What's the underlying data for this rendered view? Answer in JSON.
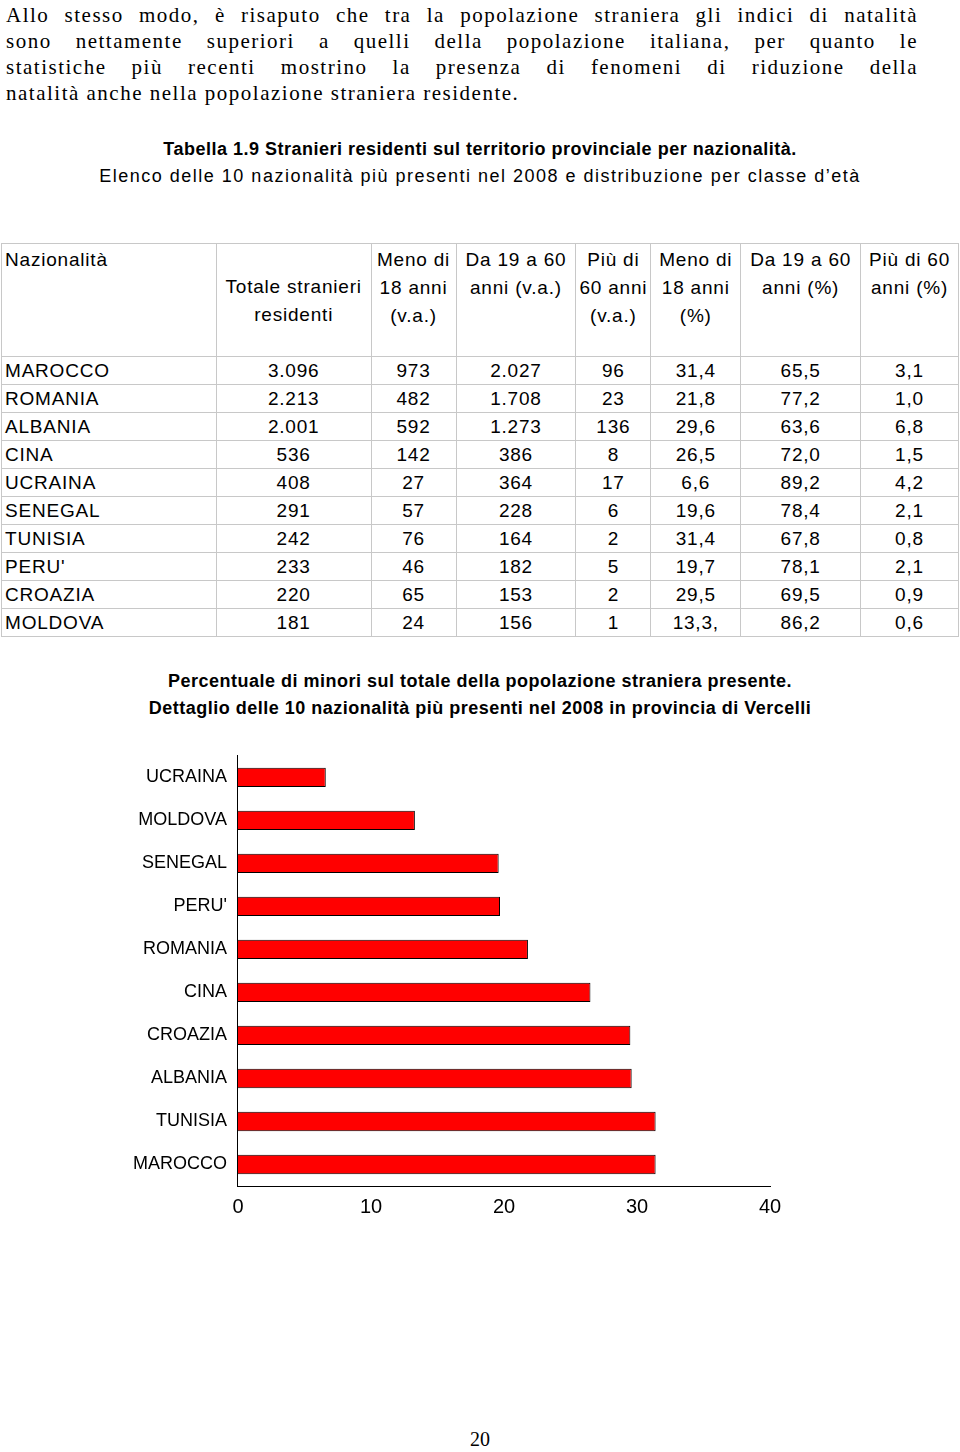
{
  "paragraph": [
    "Allo stesso modo, è risaputo che tra la popolazione straniera gli indici di natalità",
    "sono nettamente superiori a quelli della popolazione italiana, per quanto le",
    "statistiche più recenti mostrino la presenza di fenomeni di riduzione della",
    "natalità anche nella popolazione straniera residente."
  ],
  "table": {
    "title": "Tabella 1.9 Stranieri residenti sul territorio provinciale per nazionalità.",
    "subtitle": "Elenco delle 10 nazionalità più presenti nel 2008 e distribuzione per classe d’età",
    "header": [
      "Nazionalità",
      "Totale stranieri residenti",
      "Meno di 18 anni (v.a.)",
      "Da 19 a 60 anni (v.a.)",
      "Più di 60 anni (v.a.)",
      "Meno di 18 anni (%)",
      "Da 19 a 60 anni (%)",
      "Più di 60 anni (%)"
    ],
    "rows": [
      [
        "MAROCCO",
        "3.096",
        "973",
        "2.027",
        "96",
        "31,4",
        "65,5",
        "3,1"
      ],
      [
        "ROMANIA",
        "2.213",
        "482",
        "1.708",
        "23",
        "21,8",
        "77,2",
        "1,0"
      ],
      [
        "ALBANIA",
        "2.001",
        "592",
        "1.273",
        "136",
        "29,6",
        "63,6",
        "6,8"
      ],
      [
        "CINA",
        "536",
        "142",
        "386",
        "8",
        "26,5",
        "72,0",
        "1,5"
      ],
      [
        "UCRAINA",
        "408",
        "27",
        "364",
        "17",
        "6,6",
        "89,2",
        "4,2"
      ],
      [
        "SENEGAL",
        "291",
        "57",
        "228",
        "6",
        "19,6",
        "78,4",
        "2,1"
      ],
      [
        "TUNISIA",
        "242",
        "76",
        "164",
        "2",
        "31,4",
        "67,8",
        "0,8"
      ],
      [
        "PERU'",
        "233",
        "46",
        "182",
        "5",
        "19,7",
        "78,1",
        "2,1"
      ],
      [
        "CROAZIA",
        "220",
        "65",
        "153",
        "2",
        "29,5",
        "69,5",
        "0,9"
      ],
      [
        "MOLDOVA",
        "181",
        "24",
        "156",
        "1",
        "13,3,",
        "86,2",
        "0,6"
      ]
    ]
  },
  "chart_data": {
    "type": "bar",
    "orientation": "horizontal",
    "title": "Percentuale di minori sul totale della popolazione straniera presente.",
    "subtitle": "Dettaglio delle 10 nazionalità più presenti nel 2008 in provincia di Vercelli",
    "categories": [
      "UCRAINA",
      "MOLDOVA",
      "SENEGAL",
      "PERU'",
      "ROMANIA",
      "CINA",
      "CROAZIA",
      "ALBANIA",
      "TUNISIA",
      "MAROCCO"
    ],
    "values": [
      6.6,
      13.3,
      19.6,
      19.7,
      21.8,
      26.5,
      29.5,
      29.6,
      31.4,
      31.4
    ],
    "color": "#ff0000",
    "xlim": [
      0,
      40
    ],
    "xticks": [
      0,
      10,
      20,
      30,
      40
    ],
    "grid": false
  },
  "page_number": "20"
}
